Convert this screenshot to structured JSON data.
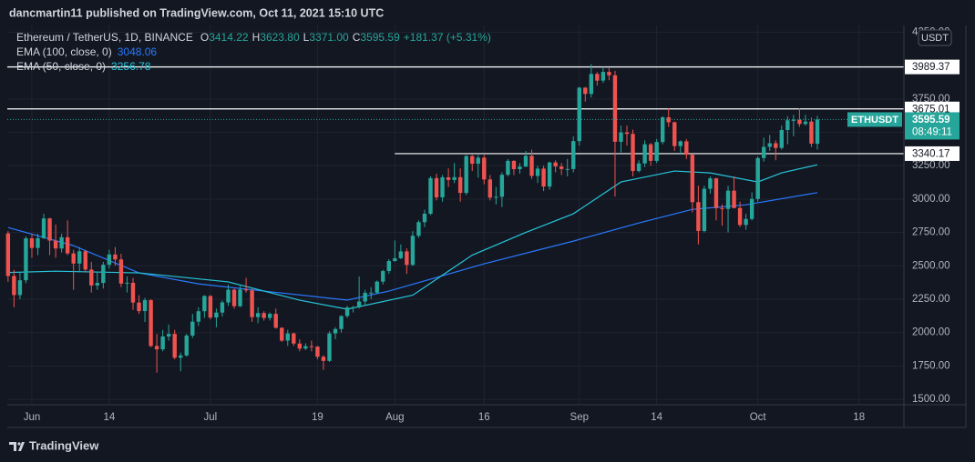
{
  "chart_data": {
    "type": "candlestick",
    "publisher": "dancmartin11 published on TradingView.com, Oct 11, 2021 15:10 UTC",
    "symbol": "Ethereum / TetherUS, 1D, BINANCE",
    "ohlc_legend": [
      {
        "key": "O",
        "text": "3414.22"
      },
      {
        "key": "H",
        "text": "3623.80"
      },
      {
        "key": "L",
        "text": "3371.00"
      },
      {
        "key": "C",
        "text": "3595.59"
      }
    ],
    "change": "+181.37 (+5.31%)",
    "ticker": "ETHUSDT",
    "countdown": "08:49:11",
    "currency": "USDT",
    "brand": "TradingView",
    "up_color": "#26a69a",
    "down_color": "#ef5350",
    "grid": true,
    "xlim": [
      -4.13,
      146.55
    ],
    "ylim": [
      1460,
      4300
    ],
    "xticks": [
      {
        "value": 0,
        "label": "Jun"
      },
      {
        "value": 13,
        "label": "14"
      },
      {
        "value": 30,
        "label": "Jul"
      },
      {
        "value": 48,
        "label": "19"
      },
      {
        "value": 61,
        "label": "Aug"
      },
      {
        "value": 76,
        "label": "16"
      },
      {
        "value": 92,
        "label": "Sep"
      },
      {
        "value": 105,
        "label": "14"
      },
      {
        "value": 122,
        "label": "Oct"
      },
      {
        "value": 139,
        "label": "18"
      }
    ],
    "yticks": [
      {
        "value": 1500,
        "label": "1500.00"
      },
      {
        "value": 1750,
        "label": "1750.00"
      },
      {
        "value": 2000,
        "label": "2000.00"
      },
      {
        "value": 2250,
        "label": "2250.00"
      },
      {
        "value": 2500,
        "label": "2500.00"
      },
      {
        "value": 2750,
        "label": "2750.00"
      },
      {
        "value": 3000,
        "label": "3000.00"
      },
      {
        "value": 3250,
        "label": "3250.00"
      },
      {
        "value": 3500,
        "label": "3500.00"
      },
      {
        "value": 3750,
        "label": "3750.00"
      },
      {
        "value": 4000,
        "label": "4000.00"
      },
      {
        "value": 4250,
        "label": "4250.00"
      }
    ],
    "price_lines": [
      {
        "value": 3989.37
      },
      {
        "value": 3675.01
      },
      {
        "value": 3340.17,
        "from": 61
      }
    ],
    "x": [
      -4,
      -3,
      -2,
      -1,
      0,
      1,
      2,
      3,
      4,
      5,
      6,
      7,
      8,
      9,
      10,
      11,
      12,
      13,
      14,
      15,
      16,
      17,
      18,
      19,
      20,
      21,
      22,
      23,
      24,
      25,
      26,
      27,
      28,
      29,
      30,
      31,
      32,
      33,
      34,
      35,
      36,
      37,
      38,
      39,
      40,
      41,
      42,
      43,
      44,
      45,
      46,
      47,
      48,
      49,
      50,
      51,
      52,
      53,
      54,
      55,
      56,
      57,
      58,
      59,
      60,
      61,
      62,
      63,
      64,
      65,
      66,
      67,
      68,
      69,
      70,
      71,
      72,
      73,
      74,
      75,
      76,
      77,
      78,
      79,
      80,
      81,
      82,
      83,
      84,
      85,
      86,
      87,
      88,
      89,
      90,
      91,
      92,
      93,
      94,
      95,
      96,
      97,
      98,
      99,
      100,
      101,
      102,
      103,
      104,
      105,
      106,
      107,
      108,
      109,
      110,
      111,
      112,
      113,
      114,
      115,
      116,
      117,
      118,
      119,
      120,
      121,
      122,
      123,
      124,
      125,
      126,
      127,
      128,
      129,
      130,
      131,
      132
    ],
    "open": [
      2743,
      2424,
      2281,
      2392,
      2706,
      2634,
      2707,
      2855,
      2689,
      2630,
      2714,
      2593,
      2517,
      2609,
      2472,
      2353,
      2372,
      2508,
      2585,
      2548,
      2367,
      2373,
      2225,
      2161,
      2243,
      1900,
      1875,
      1971,
      1990,
      1812,
      1829,
      1978,
      2082,
      2160,
      2274,
      2113,
      2150,
      2226,
      2321,
      2198,
      2323,
      2316,
      2116,
      2146,
      2110,
      2140,
      2036,
      1940,
      1994,
      1918,
      1880,
      1898,
      1895,
      1819,
      1788,
      1994,
      2027,
      2124,
      2188,
      2190,
      2233,
      2298,
      2299,
      2382,
      2461,
      2536,
      2557,
      2608,
      2507,
      2725,
      2827,
      2890,
      3157,
      3013,
      3163,
      3143,
      3164,
      3046,
      3322,
      3265,
      3310,
      3147,
      3011,
      3017,
      3182,
      3286,
      3224,
      3243,
      3324,
      3173,
      3228,
      3094,
      3274,
      3244,
      3225,
      3225,
      3434,
      3834,
      3787,
      3937,
      3887,
      3952,
      3927,
      3429,
      3499,
      3488,
      3210,
      3267,
      3410,
      3286,
      3427,
      3612,
      3575,
      3397,
      3432,
      3332,
      2977,
      2761,
      3077,
      3155,
      2932,
      2926,
      3063,
      2933,
      2806,
      2851,
      3001,
      3307,
      3391,
      3418,
      3383,
      3517,
      3590,
      3593,
      3562,
      3580,
      3414.22
    ],
    "high": [
      2760,
      2470,
      2450,
      2720,
      2740,
      2740,
      2890,
      2860,
      2810,
      2740,
      2840,
      2620,
      2640,
      2620,
      2530,
      2450,
      2530,
      2620,
      2640,
      2590,
      2420,
      2410,
      2280,
      2260,
      2250,
      1990,
      2020,
      2060,
      2020,
      1850,
      1990,
      2140,
      2190,
      2280,
      2280,
      2180,
      2240,
      2360,
      2330,
      2350,
      2410,
      2330,
      2190,
      2160,
      2150,
      2180,
      2040,
      2020,
      2000,
      1950,
      1920,
      1940,
      1900,
      1830,
      2010,
      2040,
      2130,
      2200,
      2200,
      2420,
      2320,
      2340,
      2390,
      2470,
      2550,
      2690,
      2660,
      2630,
      2760,
      2840,
      2920,
      3170,
      3190,
      3180,
      3230,
      3270,
      3230,
      3330,
      3330,
      3330,
      3330,
      3180,
      3090,
      3200,
      3300,
      3290,
      3270,
      3360,
      3370,
      3250,
      3250,
      3280,
      3290,
      3270,
      3300,
      3470,
      3840,
      3840,
      4010,
      3950,
      3990,
      3980,
      3960,
      3550,
      3550,
      3520,
      3290,
      3440,
      3420,
      3450,
      3620,
      3680,
      3580,
      3440,
      3450,
      3340,
      3100,
      3100,
      3170,
      3160,
      2960,
      3100,
      3170,
      2980,
      2890,
      3050,
      3320,
      3460,
      3480,
      3440,
      3550,
      3620,
      3630,
      3680,
      3630,
      3610,
      3623.8
    ],
    "low": [
      2380,
      2190,
      2250,
      2370,
      2560,
      2580,
      2700,
      2580,
      2560,
      2600,
      2580,
      2320,
      2450,
      2450,
      2300,
      2320,
      2330,
      2480,
      2500,
      2340,
      2300,
      2170,
      2140,
      2080,
      1890,
      1700,
      1860,
      1940,
      1800,
      1710,
      1820,
      1960,
      2050,
      2110,
      2100,
      2040,
      2120,
      2200,
      2180,
      2190,
      2300,
      2080,
      2070,
      2090,
      2090,
      2030,
      1930,
      1900,
      1900,
      1860,
      1870,
      1860,
      1800,
      1720,
      1780,
      1950,
      2000,
      2110,
      2150,
      2180,
      2200,
      2250,
      2290,
      2360,
      2440,
      2530,
      2550,
      2440,
      2500,
      2710,
      2790,
      2880,
      2990,
      2980,
      3090,
      3120,
      2980,
      3030,
      3210,
      3160,
      3110,
      2990,
      2960,
      2940,
      3170,
      3180,
      3190,
      3240,
      3150,
      3120,
      3060,
      3070,
      3200,
      3180,
      3170,
      3200,
      3400,
      3730,
      3760,
      3850,
      3870,
      3890,
      3020,
      3350,
      3400,
      3170,
      3200,
      3240,
      3250,
      3270,
      3410,
      3540,
      3360,
      3340,
      3300,
      2900,
      2660,
      2750,
      3040,
      2840,
      2800,
      2750,
      2930,
      2790,
      2770,
      2840,
      2980,
      3280,
      3360,
      3290,
      3370,
      3410,
      3470,
      3540,
      3550,
      3390,
      3371
    ],
    "close": [
      2424,
      2281,
      2392,
      2706,
      2634,
      2707,
      2855,
      2689,
      2630,
      2714,
      2593,
      2517,
      2609,
      2472,
      2353,
      2372,
      2508,
      2585,
      2548,
      2367,
      2373,
      2225,
      2161,
      2243,
      1900,
      1875,
      1971,
      1990,
      1812,
      1829,
      1978,
      2082,
      2160,
      2274,
      2113,
      2150,
      2226,
      2321,
      2198,
      2323,
      2316,
      2116,
      2146,
      2110,
      2140,
      2036,
      1940,
      1994,
      1918,
      1880,
      1898,
      1895,
      1819,
      1788,
      1994,
      2027,
      2124,
      2188,
      2190,
      2233,
      2298,
      2299,
      2382,
      2461,
      2536,
      2557,
      2608,
      2507,
      2725,
      2827,
      2890,
      3157,
      3013,
      3163,
      3143,
      3164,
      3046,
      3322,
      3265,
      3310,
      3147,
      3011,
      3017,
      3182,
      3286,
      3224,
      3243,
      3324,
      3173,
      3228,
      3094,
      3274,
      3244,
      3225,
      3225,
      3434,
      3834,
      3787,
      3937,
      3887,
      3952,
      3927,
      3429,
      3499,
      3488,
      3210,
      3267,
      3410,
      3286,
      3427,
      3612,
      3575,
      3397,
      3432,
      3332,
      2977,
      2761,
      3077,
      3155,
      2932,
      2926,
      3063,
      2933,
      2806,
      2851,
      3001,
      3307,
      3391,
      3418,
      3383,
      3517,
      3590,
      3593,
      3562,
      3580,
      3415,
      3595.59
    ],
    "series": [
      {
        "name": "EMA (100, close, 0)",
        "color": "#2979ff",
        "value_label": "3048.06",
        "x": [
          -4,
          7,
          18,
          28,
          39,
          53,
          60,
          76,
          91,
          102,
          111,
          120,
          132
        ],
        "values": [
          2787,
          2651,
          2447,
          2365,
          2311,
          2243,
          2311,
          2515,
          2685,
          2821,
          2923,
          2957,
          3048.06
        ]
      },
      {
        "name": "EMA (50, close, 0)",
        "color": "#26c6da",
        "value_label": "3256.78",
        "x": [
          -4,
          4,
          18,
          33,
          45,
          53,
          64,
          74,
          83,
          91,
          99,
          108,
          114,
          122,
          126,
          132
        ],
        "values": [
          2450,
          2460,
          2447,
          2380,
          2243,
          2175,
          2280,
          2580,
          2750,
          2890,
          3128,
          3210,
          3196,
          3128,
          3196,
          3256.78
        ]
      }
    ]
  }
}
